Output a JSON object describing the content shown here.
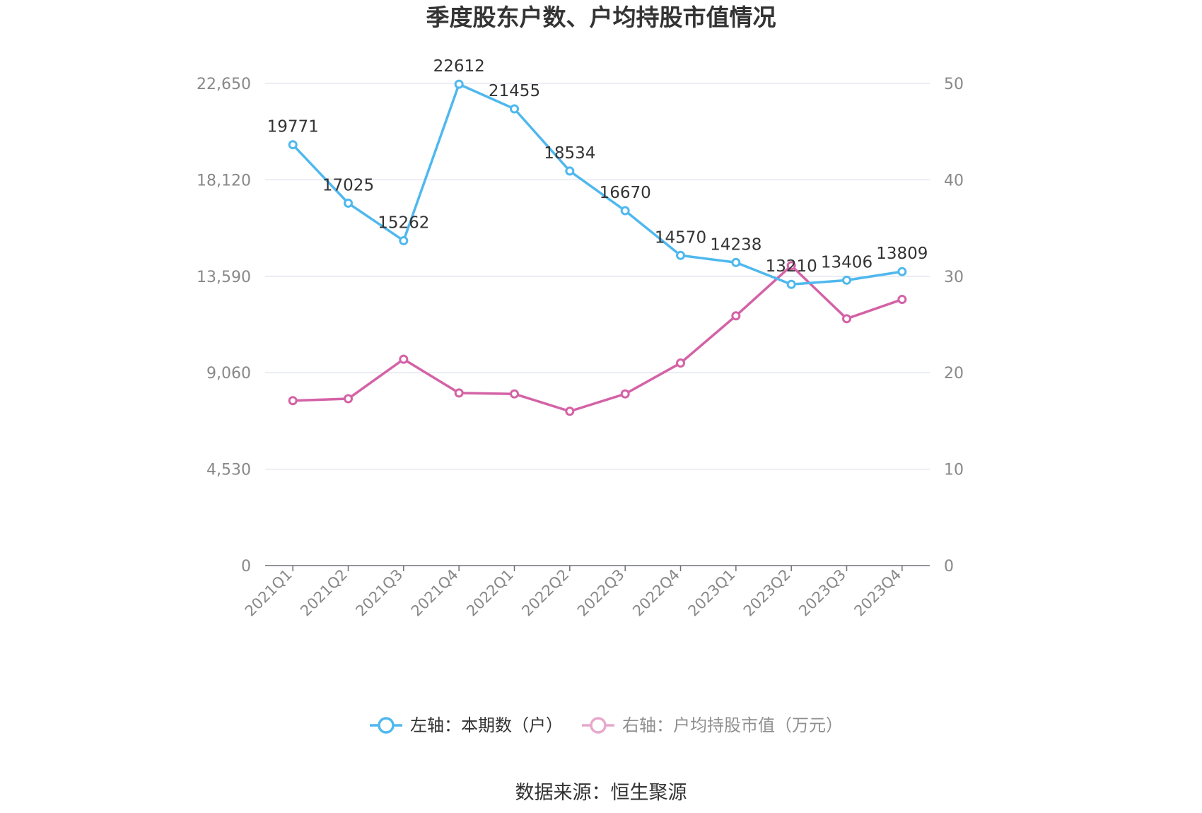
{
  "chart_data": {
    "type": "line",
    "title": "季度股东户数、户均持股市值情况",
    "categories": [
      "2021Q1",
      "2021Q2",
      "2021Q3",
      "2021Q4",
      "2022Q1",
      "2022Q2",
      "2022Q3",
      "2022Q4",
      "2023Q1",
      "2023Q2",
      "2023Q3",
      "2023Q4"
    ],
    "left_axis": {
      "ticks": [
        "0",
        "4,530",
        "9,060",
        "13,590",
        "18,120",
        "22,650"
      ],
      "ylim": [
        0,
        22650
      ]
    },
    "right_axis": {
      "ticks": [
        "0",
        "10",
        "20",
        "30",
        "40",
        "50"
      ],
      "ylim": [
        0,
        50
      ]
    },
    "series": [
      {
        "name": "左轴：本期数（户）",
        "axis": "left",
        "color": "#4fb8ee",
        "values": [
          19771,
          17025,
          15262,
          22612,
          21455,
          18534,
          16670,
          14570,
          14238,
          13210,
          13406,
          13809
        ],
        "labels": [
          "19771",
          "17025",
          "15262",
          "22612",
          "21455",
          "18534",
          "16670",
          "14570",
          "14238",
          "13210",
          "13406",
          "13809"
        ]
      },
      {
        "name": "右轴：户均持股市值（万元）",
        "axis": "right",
        "color": "#d462a6",
        "values": [
          17.1,
          17.3,
          21.4,
          17.9,
          17.8,
          16.0,
          17.8,
          21.0,
          25.9,
          31.1,
          25.6,
          27.6
        ]
      }
    ],
    "legend_position": "bottom",
    "grid": true
  },
  "source": "数据来源：恒生聚源"
}
